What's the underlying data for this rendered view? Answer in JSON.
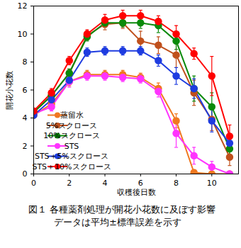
{
  "chart_data": {
    "type": "line",
    "x_label": "収穫後日数",
    "y_label": "開花小花数",
    "caption": [
      "図１ 各種薬剤処理が開花小花数に及ぼす影響",
      "データは平均±標準誤差を示す"
    ],
    "x": [
      0,
      1,
      2,
      3,
      4,
      5,
      6,
      7,
      8,
      9,
      10,
      11
    ],
    "xlim": [
      0,
      11.5
    ],
    "xticks": [
      0,
      2,
      4,
      6,
      8,
      10
    ],
    "ylim": [
      0,
      12
    ],
    "yticks": [
      0,
      2,
      4,
      6,
      8,
      10,
      12
    ],
    "grid": false,
    "legend": "lower left",
    "marker": "circle",
    "series": [
      {
        "name": "蒸留水",
        "color": "#f07820",
        "values": [
          4.2,
          5.0,
          6.6,
          7.1,
          7.1,
          7.1,
          6.9,
          6.1,
          3.8,
          0.1,
          0.0,
          0.0
        ],
        "errors": [
          0.2,
          0.3,
          0.3,
          0.3,
          0.3,
          0.3,
          0.3,
          0.4,
          0.5,
          0.2,
          0.1,
          0.1
        ]
      },
      {
        "name": "5%スクロース",
        "color": "#c0501c",
        "values": [
          4.4,
          5.6,
          7.2,
          9.9,
          10.7,
          10.8,
          9.5,
          9.2,
          8.5,
          5.8,
          3.9,
          1.2
        ],
        "errors": [
          0.2,
          0.3,
          0.3,
          0.3,
          0.4,
          0.4,
          0.7,
          0.6,
          0.9,
          0.9,
          0.8,
          0.6
        ]
      },
      {
        "name": "10%スクロース",
        "color": "#0a8a0a",
        "values": [
          4.4,
          5.6,
          7.2,
          9.8,
          10.8,
          10.8,
          10.8,
          10.6,
          9.5,
          6.1,
          4.8,
          1.8
        ],
        "errors": [
          0.2,
          0.3,
          0.3,
          0.3,
          0.3,
          0.3,
          0.4,
          0.5,
          0.6,
          0.9,
          1.0,
          0.5
        ]
      },
      {
        "name": "STS",
        "color": "#ff33ff",
        "values": [
          4.3,
          4.8,
          6.6,
          7.0,
          7.0,
          6.9,
          6.8,
          5.9,
          2.9,
          1.3,
          0.5,
          0.0
        ],
        "errors": [
          0.2,
          0.3,
          0.4,
          0.3,
          0.3,
          0.3,
          0.3,
          0.4,
          1.0,
          0.6,
          0.4,
          0.1
        ]
      },
      {
        "name": "STS＋5%スクロース",
        "color": "#1e3ce0",
        "values": [
          4.2,
          5.3,
          6.7,
          8.7,
          8.8,
          8.8,
          8.8,
          8.1,
          7.0,
          6.1,
          3.8,
          2.2
        ],
        "errors": [
          0.2,
          0.3,
          0.3,
          0.3,
          0.3,
          0.3,
          0.3,
          0.4,
          0.6,
          0.7,
          0.8,
          0.6
        ]
      },
      {
        "name": "STS＋10%スクロース",
        "color": "#ff0000",
        "values": [
          4.5,
          5.8,
          8.1,
          10.0,
          11.0,
          11.3,
          11.3,
          10.9,
          10.0,
          8.6,
          7.0,
          2.7
        ],
        "errors": [
          0.2,
          0.3,
          0.3,
          0.3,
          0.4,
          0.4,
          0.4,
          0.4,
          0.6,
          0.4,
          1.4,
          0.8
        ]
      }
    ]
  }
}
